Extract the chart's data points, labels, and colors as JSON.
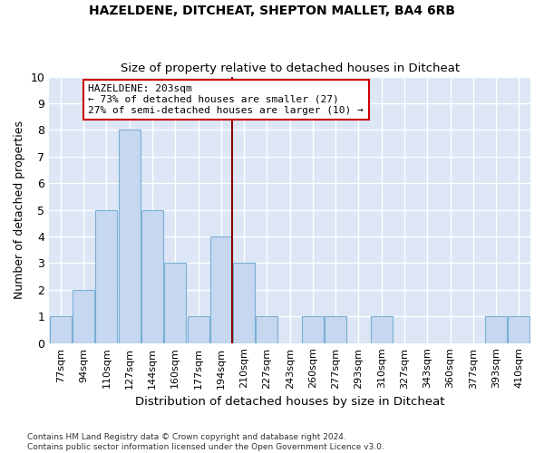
{
  "title": "HAZELDENE, DITCHEAT, SHEPTON MALLET, BA4 6RB",
  "subtitle": "Size of property relative to detached houses in Ditcheat",
  "xlabel": "Distribution of detached houses by size in Ditcheat",
  "ylabel": "Number of detached properties",
  "bar_labels": [
    "77sqm",
    "94sqm",
    "110sqm",
    "127sqm",
    "144sqm",
    "160sqm",
    "177sqm",
    "194sqm",
    "210sqm",
    "227sqm",
    "243sqm",
    "260sqm",
    "277sqm",
    "293sqm",
    "310sqm",
    "327sqm",
    "343sqm",
    "360sqm",
    "377sqm",
    "393sqm",
    "410sqm"
  ],
  "bar_values": [
    1,
    2,
    5,
    8,
    5,
    3,
    1,
    4,
    3,
    1,
    0,
    1,
    1,
    0,
    1,
    0,
    0,
    0,
    0,
    1,
    1
  ],
  "bar_color": "#c5d8f0",
  "bar_edge_color": "#7bafd4",
  "vline_color": "#8b0000",
  "annotation_text": "HAZELDENE: 203sqm\n← 73% of detached houses are smaller (27)\n27% of semi-detached houses are larger (10) →",
  "annotation_box_color": "#ffffff",
  "annotation_box_edge_color": "#cc0000",
  "ylim": [
    0,
    10
  ],
  "yticks": [
    0,
    1,
    2,
    3,
    4,
    5,
    6,
    7,
    8,
    9,
    10
  ],
  "bg_color": "#dce6f5",
  "grid_color": "#ffffff",
  "fig_bg_color": "#ffffff",
  "footnote": "Contains HM Land Registry data © Crown copyright and database right 2024.\nContains public sector information licensed under the Open Government Licence v3.0.",
  "title_fontsize": 10,
  "subtitle_fontsize": 9.5,
  "xlabel_fontsize": 9.5,
  "ylabel_fontsize": 9,
  "tick_fontsize": 8
}
